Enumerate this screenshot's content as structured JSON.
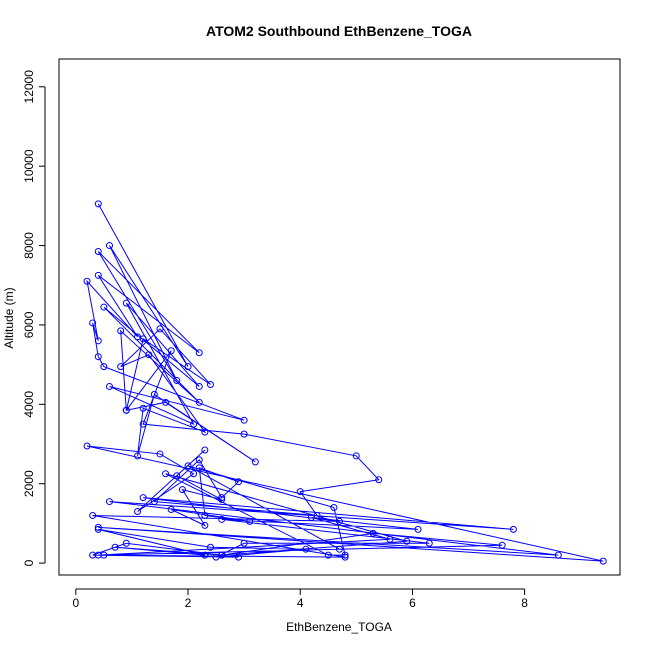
{
  "chart_data": {
    "type": "line",
    "title": "ATOM2 Southbound EthBenzene_TOGA",
    "xlabel": "EthBenzene_TOGA",
    "ylabel": "Altitude (m)",
    "xlim": [
      -0.3,
      9.7
    ],
    "ylim": [
      -300,
      12700
    ],
    "xticks": [
      0,
      2,
      4,
      6,
      8
    ],
    "yticks": [
      0,
      2000,
      4000,
      6000,
      8000,
      10000,
      12000
    ],
    "grid": false,
    "color": "#0000ff",
    "series": [
      {
        "points": [
          [
            0.4,
            9050
          ],
          [
            2.0,
            4950
          ],
          [
            0.6,
            8000
          ],
          [
            1.8,
            4600
          ],
          [
            0.4,
            7850
          ],
          [
            2.2,
            5300
          ],
          [
            0.4,
            7250
          ],
          [
            1.1,
            5700
          ],
          [
            0.2,
            7100
          ],
          [
            0.4,
            5600
          ],
          [
            0.3,
            6050
          ],
          [
            0.4,
            5200
          ],
          [
            0.5,
            4950
          ],
          [
            3.0,
            3600
          ],
          [
            0.6,
            4450
          ],
          [
            2.1,
            3500
          ],
          [
            0.9,
            6550
          ],
          [
            2.2,
            4450
          ],
          [
            0.5,
            6450
          ],
          [
            2.2,
            4050
          ],
          [
            0.8,
            5850
          ],
          [
            0.9,
            3850
          ],
          [
            1.2,
            5650
          ],
          [
            2.4,
            4500
          ],
          [
            1.5,
            5900
          ],
          [
            0.8,
            4950
          ],
          [
            1.3,
            5250
          ],
          [
            2.3,
            3300
          ],
          [
            1.2,
            3900
          ],
          [
            1.1,
            2700
          ],
          [
            1.4,
            4250
          ],
          [
            3.2,
            2550
          ],
          [
            1.6,
            4050
          ],
          [
            0.9,
            3850
          ],
          [
            1.7,
            5350
          ],
          [
            1.2,
            3500
          ],
          [
            3.0,
            3250
          ],
          [
            5.0,
            2700
          ],
          [
            5.4,
            2100
          ],
          [
            4.0,
            1800
          ],
          [
            4.3,
            1200
          ],
          [
            1.4,
            1550
          ],
          [
            2.2,
            2600
          ],
          [
            2.6,
            1650
          ],
          [
            2.9,
            2050
          ],
          [
            2.2,
            2400
          ],
          [
            2.3,
            1200
          ],
          [
            3.1,
            1050
          ],
          [
            1.7,
            1350
          ],
          [
            2.3,
            950
          ],
          [
            1.9,
            1850
          ],
          [
            2.6,
            1600
          ],
          [
            1.8,
            2200
          ],
          [
            2.3,
            2850
          ],
          [
            1.1,
            1300
          ],
          [
            2.1,
            2250
          ],
          [
            1.5,
            2750
          ],
          [
            0.2,
            2950
          ],
          [
            9.4,
            50
          ],
          [
            0.4,
            900
          ],
          [
            8.6,
            200
          ],
          [
            0.6,
            1550
          ],
          [
            7.8,
            850
          ],
          [
            1.2,
            1650
          ],
          [
            4.7,
            1050
          ],
          [
            0.3,
            1200
          ],
          [
            4.8,
            150
          ],
          [
            0.5,
            200
          ],
          [
            2.9,
            150
          ],
          [
            0.3,
            200
          ],
          [
            0.9,
            500
          ],
          [
            2.6,
            200
          ],
          [
            0.7,
            400
          ],
          [
            2.3,
            200
          ],
          [
            0.4,
            850
          ],
          [
            2.4,
            400
          ],
          [
            4.1,
            350
          ],
          [
            2.5,
            150
          ],
          [
            3.0,
            500
          ],
          [
            6.3,
            500
          ],
          [
            2.6,
            1100
          ],
          [
            6.1,
            850
          ],
          [
            4.2,
            1150
          ],
          [
            5.6,
            600
          ],
          [
            0.4,
            200
          ],
          [
            7.6,
            450
          ],
          [
            5.3,
            750
          ],
          [
            2.6,
            200
          ],
          [
            5.9,
            550
          ],
          [
            1.6,
            2250
          ],
          [
            4.5,
            200
          ],
          [
            4.8,
            200
          ],
          [
            4.6,
            1400
          ],
          [
            2.0,
            2450
          ],
          [
            4.7,
            350
          ]
        ]
      }
    ]
  }
}
